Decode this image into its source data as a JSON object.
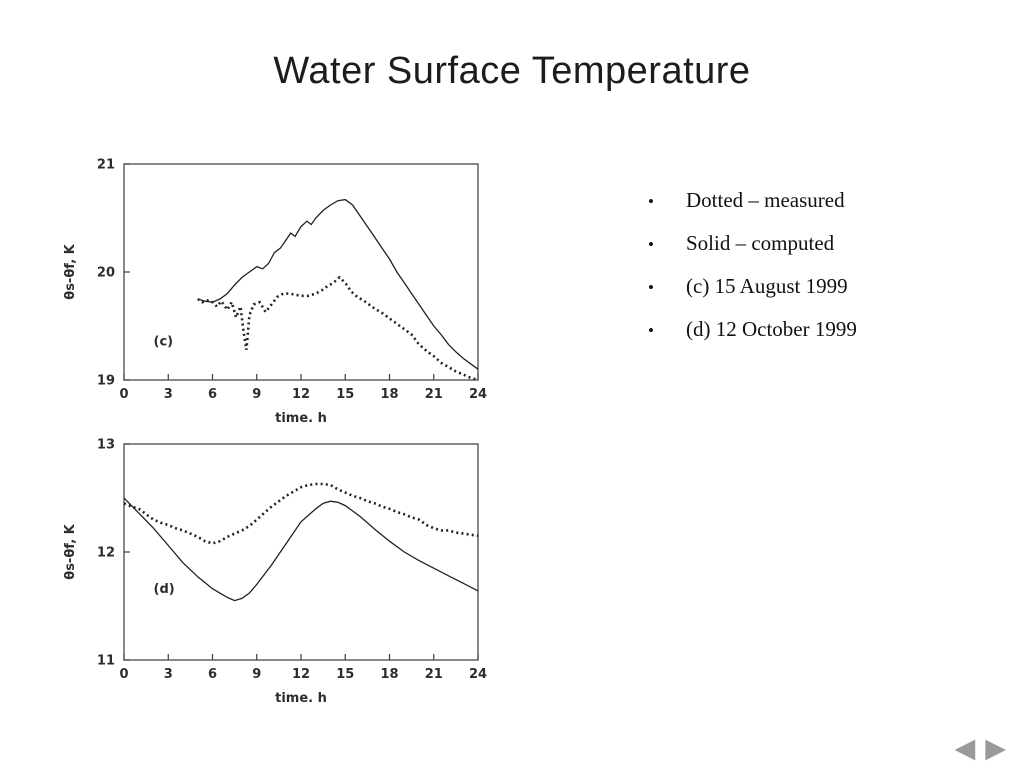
{
  "slide": {
    "title": "Water Surface Temperature",
    "bullet_char": "•",
    "bullets": [
      "Dotted – measured",
      "Solid – computed",
      "(c) 15 August 1999",
      "(d) 12 October 1999"
    ]
  },
  "nav": {
    "back_icon": "◀",
    "forward_icon": "▶",
    "color": "#9a9a9a"
  },
  "chart_data": [
    {
      "type": "line",
      "panel_label": "(c)",
      "panel_label_pos": [
        2.0,
        19.32
      ],
      "xlabel": "time. h",
      "ylabel": "θs-θf, K",
      "xlim": [
        0,
        24
      ],
      "ylim": [
        19,
        21
      ],
      "xticks": [
        0,
        3,
        6,
        9,
        12,
        15,
        18,
        21,
        24
      ],
      "yticks": [
        19,
        20,
        21
      ],
      "series": [
        {
          "name": "computed",
          "style": "solid",
          "points": [
            [
              5,
              19.75
            ],
            [
              5.5,
              19.73
            ],
            [
              6,
              19.72
            ],
            [
              6.5,
              19.75
            ],
            [
              7,
              19.8
            ],
            [
              7.5,
              19.88
            ],
            [
              8,
              19.95
            ],
            [
              8.5,
              20.0
            ],
            [
              9,
              20.05
            ],
            [
              9.4,
              20.03
            ],
            [
              9.8,
              20.08
            ],
            [
              10.2,
              20.18
            ],
            [
              10.6,
              20.22
            ],
            [
              11,
              20.3
            ],
            [
              11.3,
              20.36
            ],
            [
              11.6,
              20.33
            ],
            [
              12,
              20.42
            ],
            [
              12.4,
              20.47
            ],
            [
              12.7,
              20.44
            ],
            [
              13,
              20.5
            ],
            [
              13.5,
              20.57
            ],
            [
              14,
              20.62
            ],
            [
              14.5,
              20.66
            ],
            [
              15,
              20.67
            ],
            [
              15.5,
              20.62
            ],
            [
              16,
              20.52
            ],
            [
              16.5,
              20.42
            ],
            [
              17,
              20.32
            ],
            [
              17.5,
              20.22
            ],
            [
              18,
              20.12
            ],
            [
              18.5,
              20.0
            ],
            [
              19,
              19.9
            ],
            [
              19.5,
              19.8
            ],
            [
              20,
              19.7
            ],
            [
              20.5,
              19.6
            ],
            [
              21,
              19.5
            ],
            [
              21.5,
              19.42
            ],
            [
              22,
              19.33
            ],
            [
              22.5,
              19.26
            ],
            [
              23,
              19.2
            ],
            [
              23.5,
              19.15
            ],
            [
              24,
              19.1
            ]
          ]
        },
        {
          "name": "measured",
          "style": "dotted",
          "points": [
            [
              5,
              19.75
            ],
            [
              5.3,
              19.72
            ],
            [
              5.6,
              19.74
            ],
            [
              6,
              19.72
            ],
            [
              6.3,
              19.68
            ],
            [
              6.6,
              19.73
            ],
            [
              7,
              19.65
            ],
            [
              7.3,
              19.72
            ],
            [
              7.6,
              19.58
            ],
            [
              7.9,
              19.68
            ],
            [
              8.1,
              19.45
            ],
            [
              8.3,
              19.28
            ],
            [
              8.5,
              19.6
            ],
            [
              8.8,
              19.7
            ],
            [
              9.2,
              19.72
            ],
            [
              9.6,
              19.63
            ],
            [
              10,
              19.7
            ],
            [
              10.4,
              19.77
            ],
            [
              10.8,
              19.8
            ],
            [
              11.2,
              19.8
            ],
            [
              11.6,
              19.79
            ],
            [
              12,
              19.78
            ],
            [
              12.5,
              19.78
            ],
            [
              13,
              19.8
            ],
            [
              13.4,
              19.83
            ],
            [
              13.8,
              19.87
            ],
            [
              14.2,
              19.9
            ],
            [
              14.6,
              19.95
            ],
            [
              15,
              19.9
            ],
            [
              15.4,
              19.82
            ],
            [
              15.8,
              19.77
            ],
            [
              16.2,
              19.74
            ],
            [
              16.6,
              19.7
            ],
            [
              17,
              19.66
            ],
            [
              17.5,
              19.62
            ],
            [
              18,
              19.57
            ],
            [
              18.5,
              19.52
            ],
            [
              19,
              19.47
            ],
            [
              19.5,
              19.42
            ],
            [
              20,
              19.33
            ],
            [
              20.5,
              19.27
            ],
            [
              21,
              19.22
            ],
            [
              21.5,
              19.16
            ],
            [
              22,
              19.12
            ],
            [
              22.5,
              19.08
            ],
            [
              23,
              19.05
            ],
            [
              23.5,
              19.02
            ],
            [
              24,
              19.0
            ]
          ]
        }
      ]
    },
    {
      "type": "line",
      "panel_label": "(d)",
      "panel_label_pos": [
        2.0,
        11.62
      ],
      "xlabel": "time. h",
      "ylabel": "θs-θf, K",
      "xlim": [
        0,
        24
      ],
      "ylim": [
        11,
        13
      ],
      "xticks": [
        0,
        3,
        6,
        9,
        12,
        15,
        18,
        21,
        24
      ],
      "yticks": [
        11,
        12,
        13
      ],
      "series": [
        {
          "name": "computed",
          "style": "solid",
          "points": [
            [
              0,
              12.5
            ],
            [
              1,
              12.36
            ],
            [
              2,
              12.22
            ],
            [
              3,
              12.06
            ],
            [
              4,
              11.9
            ],
            [
              5,
              11.77
            ],
            [
              6,
              11.66
            ],
            [
              7,
              11.58
            ],
            [
              7.5,
              11.55
            ],
            [
              8,
              11.57
            ],
            [
              8.5,
              11.62
            ],
            [
              9,
              11.7
            ],
            [
              10,
              11.88
            ],
            [
              11,
              12.08
            ],
            [
              12,
              12.28
            ],
            [
              13,
              12.4
            ],
            [
              13.5,
              12.45
            ],
            [
              14,
              12.47
            ],
            [
              14.5,
              12.46
            ],
            [
              15,
              12.43
            ],
            [
              16,
              12.33
            ],
            [
              17,
              12.21
            ],
            [
              18,
              12.1
            ],
            [
              19,
              12.0
            ],
            [
              20,
              11.92
            ],
            [
              21,
              11.85
            ],
            [
              22,
              11.78
            ],
            [
              23,
              11.71
            ],
            [
              24,
              11.64
            ]
          ]
        },
        {
          "name": "measured",
          "style": "dotted",
          "points": [
            [
              0,
              12.45
            ],
            [
              0.5,
              12.42
            ],
            [
              1,
              12.4
            ],
            [
              1.5,
              12.35
            ],
            [
              2,
              12.3
            ],
            [
              2.5,
              12.27
            ],
            [
              3,
              12.25
            ],
            [
              3.5,
              12.22
            ],
            [
              4,
              12.2
            ],
            [
              4.5,
              12.17
            ],
            [
              5,
              12.14
            ],
            [
              5.5,
              12.1
            ],
            [
              6,
              12.08
            ],
            [
              6.5,
              12.1
            ],
            [
              7,
              12.14
            ],
            [
              7.5,
              12.17
            ],
            [
              8,
              12.2
            ],
            [
              8.5,
              12.24
            ],
            [
              9,
              12.3
            ],
            [
              9.5,
              12.36
            ],
            [
              10,
              12.42
            ],
            [
              10.5,
              12.47
            ],
            [
              11,
              12.52
            ],
            [
              11.5,
              12.56
            ],
            [
              12,
              12.6
            ],
            [
              12.5,
              12.62
            ],
            [
              13,
              12.63
            ],
            [
              13.5,
              12.63
            ],
            [
              14,
              12.62
            ],
            [
              14.5,
              12.58
            ],
            [
              15,
              12.55
            ],
            [
              15.5,
              12.52
            ],
            [
              16,
              12.5
            ],
            [
              16.5,
              12.47
            ],
            [
              17,
              12.45
            ],
            [
              17.5,
              12.42
            ],
            [
              18,
              12.4
            ],
            [
              18.5,
              12.37
            ],
            [
              19,
              12.35
            ],
            [
              19.5,
              12.32
            ],
            [
              20,
              12.3
            ],
            [
              20.5,
              12.25
            ],
            [
              21,
              12.22
            ],
            [
              21.5,
              12.2
            ],
            [
              22,
              12.2
            ],
            [
              22.5,
              12.18
            ],
            [
              23,
              12.17
            ],
            [
              23.5,
              12.16
            ],
            [
              24,
              12.15
            ]
          ]
        }
      ]
    }
  ]
}
